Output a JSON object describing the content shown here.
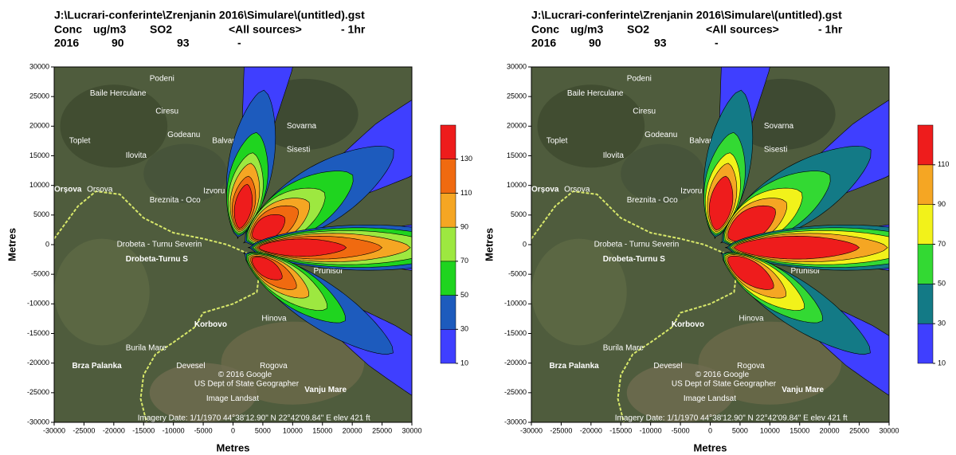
{
  "chart_data": [
    {
      "type": "contour",
      "title": "J:\\Lucrari-conferinte\\Zrenjanin 2016\\Simulare\\(untitled).gst",
      "subtitle": [
        "Conc",
        "ug/m3",
        "SO2",
        "<All sources>",
        "- 1hr"
      ],
      "info": [
        "2016",
        "90",
        "93",
        "-"
      ],
      "xlabel": "Metres",
      "ylabel": "Metres",
      "xlim": [
        -30000,
        30000
      ],
      "xticks": [
        -30000,
        -25000,
        -20000,
        -15000,
        -10000,
        -5000,
        0,
        5000,
        10000,
        15000,
        20000,
        25000,
        30000
      ],
      "ylim": [
        -30000,
        30000
      ],
      "yticks": [
        -30000,
        -25000,
        -20000,
        -15000,
        -10000,
        -5000,
        0,
        5000,
        10000,
        15000,
        20000,
        25000,
        30000
      ],
      "levels": [
        10,
        30,
        50,
        70,
        90,
        110,
        130
      ],
      "colors": [
        "#3f3fff",
        "#1d5bbd",
        "#1fd41f",
        "#9de840",
        "#f5a623",
        "#f06a10",
        "#ee1c1c"
      ],
      "map_labels": [
        "Podeni",
        "Baile Herculane",
        "Ciresu",
        "Toplet",
        "Godeanu",
        "Balvan",
        "Ilovita",
        "Sovarna",
        "Sisesti",
        "Orșova",
        "Orsova",
        "Izvoru",
        "Breznita - Oco",
        "Drobeta - Turnu Severin",
        "Drobeta-Turnu S",
        "Prunisor",
        "Korbovo",
        "Hinova",
        "Burila Mare",
        "Brza Palanka",
        "Devesel",
        "Rogova",
        "Vanju Mare",
        "© 2016 Google",
        "US Dept of State Geographer",
        "Image Landsat",
        "Imagery Date: 1/1/1970    44°38'12.90\" N    22°42'09.84\" E  elev  421 ft"
      ]
    },
    {
      "type": "contour",
      "title": "J:\\Lucrari-conferinte\\Zrenjanin 2016\\Simulare\\(untitled).gst",
      "subtitle": [
        "Conc",
        "ug/m3",
        "SO2",
        "<All sources>",
        "- 1hr"
      ],
      "info": [
        "2016",
        "90",
        "93",
        "-"
      ],
      "xlabel": "Metres",
      "ylabel": "Metres",
      "xlim": [
        -30000,
        30000
      ],
      "xticks": [
        -30000,
        -25000,
        -20000,
        -15000,
        -10000,
        -5000,
        0,
        5000,
        10000,
        15000,
        20000,
        25000,
        30000
      ],
      "ylim": [
        -30000,
        30000
      ],
      "yticks": [
        -30000,
        -25000,
        -20000,
        -15000,
        -10000,
        -5000,
        0,
        5000,
        10000,
        15000,
        20000,
        25000,
        30000
      ],
      "levels": [
        10,
        30,
        50,
        70,
        90,
        110
      ],
      "colors": [
        "#3f3fff",
        "#137a86",
        "#33d933",
        "#f2f21a",
        "#f5a623",
        "#ee1c1c"
      ],
      "map_labels": [
        "Podeni",
        "Baile Herculane",
        "Ciresu",
        "Toplet",
        "Godeanu",
        "Balvan",
        "Ilovita",
        "Sovarna",
        "Sisesti",
        "Orșova",
        "Orsova",
        "Izvoru",
        "Breznita - Oco",
        "Drobeta - Turnu Severin",
        "Drobeta-Turnu S",
        "Prunisor",
        "Korbovo",
        "Hinova",
        "Burila Mare",
        "Brza Palanka",
        "Devesel",
        "Rogova",
        "Vanju Mare",
        "© 2016 Google",
        "US Dept of State Geographer",
        "Image Landsat",
        "Imagery Date: 1/1/1970    44°38'12.90\" N    22°42'09.84\" E  elev  421 ft"
      ]
    }
  ]
}
